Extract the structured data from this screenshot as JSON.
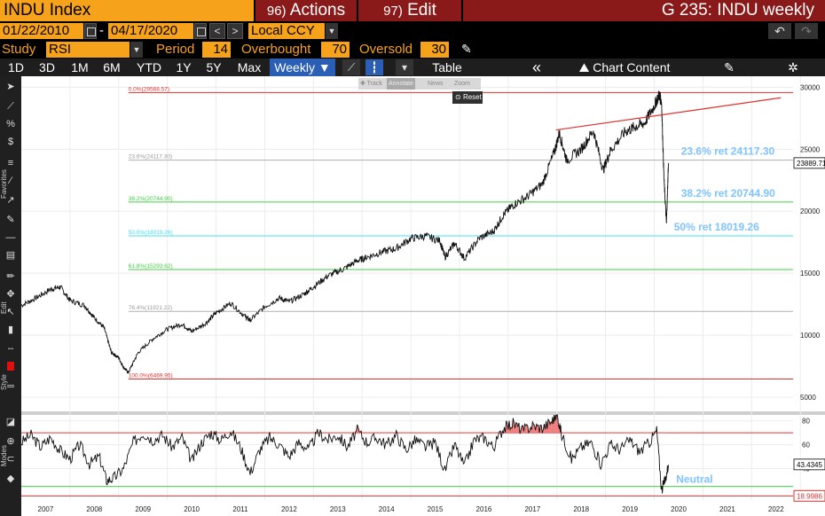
{
  "header": {
    "ticker": "INDU Index",
    "actions_num": "96)",
    "actions_label": "Actions",
    "edit_num": "97)",
    "edit_label": "Edit",
    "window_title": "G 235: INDU weekly"
  },
  "dates": {
    "start": "01/22/2010",
    "separator": "-",
    "end": "04/17/2020",
    "prev": "<",
    "next": ">",
    "currency": "Local CCY"
  },
  "study": {
    "study_label": "Study",
    "study_value": "RSI",
    "period_label": "Period",
    "period_value": "14",
    "overbought_label": "Overbought",
    "overbought_value": "70",
    "oversold_label": "Oversold",
    "oversold_value": "30"
  },
  "toolbar": {
    "ranges": [
      "1D",
      "3D",
      "1M",
      "6M",
      "YTD",
      "1Y",
      "5Y",
      "Max"
    ],
    "frequency": "Weekly ▼",
    "table_label": "Table",
    "collapse": "«",
    "chart_content": "Chart Content"
  },
  "left_labels": {
    "favorites": "Favorites",
    "edit": "Edit",
    "style": "Style",
    "modes": "Modes"
  },
  "popup": {
    "items": [
      "✚ Track",
      "Annotate",
      "News",
      "Zoom"
    ],
    "reset": "Reset"
  },
  "fib_levels": [
    {
      "label": "0.0%(29568.57)",
      "value": 29568.57,
      "color": "#e03030"
    },
    {
      "label": "23.6%(24117.30)",
      "value": 24117.3,
      "color": "#b0b0b0"
    },
    {
      "label": "38.2%(20744.90)",
      "value": 20744.9,
      "color": "#40d040"
    },
    {
      "label": "50.0%(18019.26)",
      "value": 18019.26,
      "color": "#40e0f0"
    },
    {
      "label": "61.8%(15293.62)",
      "value": 15293.62,
      "color": "#40d040"
    },
    {
      "label": "76.4%(11921.22)",
      "value": 11921.22,
      "color": "#b0b0b0"
    },
    {
      "label": "100.0%(6469.95)",
      "value": 6469.95,
      "color": "#e03030"
    }
  ],
  "annotations": [
    {
      "text": "23.6% ret 24117.30",
      "value": 24117.3
    },
    {
      "text": "38.2% ret 20744.90",
      "value": 20744.9
    },
    {
      "text": "50% ret 18019.26",
      "value": 18019.26
    }
  ],
  "rsi_annotation": "Neutral",
  "chart_data": [
    {
      "type": "line",
      "title": "",
      "y_ticks": [
        5000,
        10000,
        15000,
        20000,
        25000,
        30000
      ],
      "ylim": [
        4000,
        30600
      ],
      "last_value": "23889.71",
      "x": [
        2007.0,
        2007.3,
        2007.6,
        2007.8,
        2008.0,
        2008.3,
        2008.5,
        2008.7,
        2008.85,
        2009.0,
        2009.1,
        2009.2,
        2009.4,
        2009.7,
        2010.0,
        2010.3,
        2010.5,
        2010.8,
        2011.0,
        2011.3,
        2011.6,
        2011.7,
        2012.0,
        2012.3,
        2012.5,
        2012.8,
        2013.0,
        2013.3,
        2013.6,
        2013.9,
        2014.1,
        2014.4,
        2014.7,
        2015.0,
        2015.3,
        2015.6,
        2015.7,
        2015.9,
        2016.1,
        2016.4,
        2016.7,
        2016.9,
        2017.1,
        2017.4,
        2017.7,
        2017.95,
        2018.05,
        2018.2,
        2018.5,
        2018.75,
        2018.95,
        2019.1,
        2019.4,
        2019.6,
        2019.8,
        2020.0,
        2020.1,
        2020.15,
        2020.2,
        2020.25,
        2020.29
      ],
      "y": [
        12400,
        13000,
        13700,
        13900,
        12800,
        12400,
        11400,
        10600,
        8600,
        8200,
        7400,
        7000,
        8600,
        9700,
        10500,
        10900,
        10300,
        11000,
        11800,
        12600,
        11500,
        11200,
        12300,
        13000,
        12700,
        13300,
        13900,
        14800,
        15300,
        16000,
        16300,
        16700,
        17000,
        17800,
        18000,
        17600,
        16300,
        17400,
        16200,
        17800,
        18400,
        19700,
        20500,
        21200,
        22200,
        24800,
        26300,
        24100,
        25000,
        26500,
        23300,
        24900,
        26400,
        26800,
        27100,
        28500,
        29400,
        28800,
        22500,
        19000,
        23889
      ],
      "trendline": {
        "x1": 2017.98,
        "y1": 26550,
        "x2": 2022.6,
        "y2": 29150
      }
    },
    {
      "type": "line",
      "title": "RSI",
      "y_ticks": [
        40,
        60,
        80
      ],
      "ylim": [
        15,
        85
      ],
      "overbought": 70,
      "oversold": 30,
      "neutral": 25,
      "last_value": "43.4345",
      "oversold_value_label": "18.9986",
      "x": [
        2007.0,
        2007.2,
        2007.4,
        2007.6,
        2007.8,
        2008.0,
        2008.2,
        2008.4,
        2008.6,
        2008.75,
        2008.9,
        2009.1,
        2009.3,
        2009.5,
        2009.7,
        2009.9,
        2010.1,
        2010.3,
        2010.5,
        2010.7,
        2010.9,
        2011.1,
        2011.3,
        2011.5,
        2011.7,
        2011.9,
        2012.1,
        2012.3,
        2012.5,
        2012.7,
        2012.9,
        2013.1,
        2013.3,
        2013.5,
        2013.7,
        2013.9,
        2014.1,
        2014.3,
        2014.5,
        2014.7,
        2014.9,
        2015.1,
        2015.3,
        2015.5,
        2015.7,
        2015.9,
        2016.1,
        2016.3,
        2016.5,
        2016.7,
        2016.9,
        2017.1,
        2017.3,
        2017.5,
        2017.7,
        2017.9,
        2018.0,
        2018.1,
        2018.3,
        2018.5,
        2018.7,
        2018.9,
        2019.1,
        2019.3,
        2019.5,
        2019.7,
        2019.9,
        2020.05,
        2020.15,
        2020.22,
        2020.29
      ],
      "y": [
        62,
        68,
        58,
        66,
        55,
        48,
        60,
        44,
        50,
        30,
        32,
        40,
        62,
        70,
        64,
        68,
        58,
        66,
        46,
        62,
        70,
        64,
        72,
        58,
        36,
        56,
        66,
        60,
        50,
        62,
        56,
        70,
        64,
        68,
        58,
        72,
        62,
        66,
        60,
        68,
        56,
        64,
        58,
        62,
        38,
        60,
        42,
        64,
        66,
        58,
        74,
        78,
        72,
        76,
        74,
        80,
        86,
        68,
        48,
        58,
        62,
        44,
        60,
        56,
        64,
        54,
        62,
        72,
        22,
        30,
        43
      ]
    }
  ],
  "x_axis": {
    "years": [
      "2007",
      "2008",
      "2009",
      "2010",
      "2011",
      "2012",
      "2013",
      "2014",
      "2015",
      "2016",
      "2017",
      "2018",
      "2019",
      "2020",
      "2021",
      "2022"
    ]
  }
}
